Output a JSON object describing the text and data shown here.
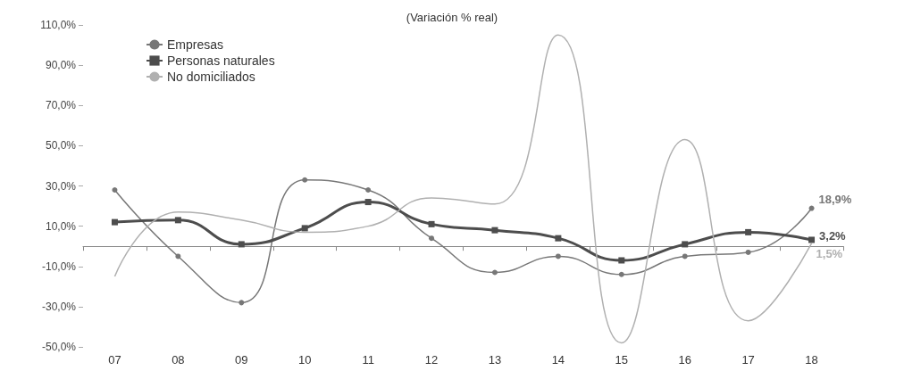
{
  "chart_data": {
    "type": "line",
    "title": "(Variación % real)",
    "categories": [
      "07",
      "08",
      "09",
      "10",
      "11",
      "12",
      "13",
      "14",
      "15",
      "16",
      "17",
      "18"
    ],
    "series": [
      {
        "name": "Empresas",
        "color": "#777777",
        "marker": "circle",
        "values": [
          28,
          -5,
          -28,
          33,
          28,
          4,
          -13,
          -5,
          -14,
          -5,
          -3,
          18.9
        ],
        "value_labels": [
          null,
          null,
          null,
          null,
          null,
          null,
          null,
          null,
          null,
          null,
          null,
          "18,9%"
        ]
      },
      {
        "name": "Personas naturales",
        "color": "#4d4d4d",
        "marker": "square",
        "values": [
          12,
          13,
          1,
          9,
          22,
          11,
          8,
          4,
          -7,
          1,
          7,
          3.2
        ],
        "value_labels": [
          null,
          null,
          null,
          null,
          null,
          null,
          null,
          null,
          null,
          null,
          null,
          "3,2%"
        ]
      },
      {
        "name": "No domiciliados",
        "color": "#b0b0b0",
        "marker": "none",
        "values": [
          -15,
          17,
          13,
          7,
          10,
          24,
          21,
          105,
          -48,
          53,
          -37,
          1.5
        ],
        "value_labels": [
          null,
          null,
          null,
          null,
          null,
          null,
          null,
          null,
          null,
          null,
          null,
          "1,5%"
        ]
      }
    ],
    "ylim": [
      -50,
      110
    ],
    "yticks": [
      {
        "value": -50,
        "label": "-50,0%"
      },
      {
        "value": -30,
        "label": "-30,0%"
      },
      {
        "value": -10,
        "label": "-10,0%"
      },
      {
        "value": 10,
        "label": "10,0%"
      },
      {
        "value": 30,
        "label": "30,0%"
      },
      {
        "value": 50,
        "label": "50,0%"
      },
      {
        "value": 70,
        "label": "70,0%"
      },
      {
        "value": 90,
        "label": "90,0%"
      },
      {
        "value": 110,
        "label": "110,0%"
      }
    ],
    "grid": false,
    "legend": "top left"
  }
}
